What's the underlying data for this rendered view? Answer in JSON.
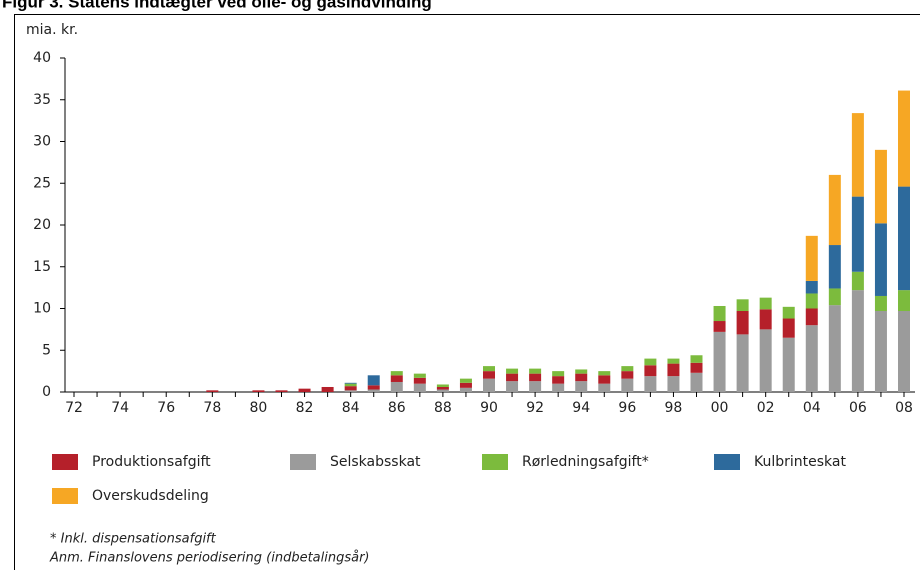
{
  "chart_data": {
    "type": "stacked_bar",
    "title": "Figur 3. Statens indtægter ved olie- og gasindvinding",
    "y_label": "mia. kr.",
    "categories": [
      "72",
      null,
      "74",
      null,
      "76",
      null,
      "78",
      null,
      "80",
      null,
      "82",
      null,
      "84",
      null,
      "86",
      null,
      "88",
      null,
      "90",
      null,
      "92",
      null,
      "94",
      null,
      "96",
      null,
      "98",
      null,
      "00",
      null,
      "02",
      null,
      "04",
      null,
      "06",
      null,
      "08"
    ],
    "series": [
      {
        "name": "Produktionsafgift",
        "color": "#b5202a",
        "values": [
          0,
          0,
          0,
          0,
          0,
          0,
          0.2,
          0,
          0.2,
          0.2,
          0.4,
          0.6,
          0.5,
          0.5,
          0.8,
          0.7,
          0.3,
          0.6,
          0.9,
          0.9,
          0.9,
          0.9,
          0.9,
          1.0,
          0.9,
          1.3,
          1.5,
          1.2,
          1.3,
          2.8,
          2.4,
          2.3,
          2.0,
          0,
          0,
          0,
          0
        ]
      },
      {
        "name": "Selskabsskat",
        "color": "#9b9b9b",
        "values": [
          0,
          0,
          0,
          0,
          0,
          0,
          0,
          0,
          0,
          0,
          0,
          0,
          0.2,
          0.3,
          1.2,
          1.0,
          0.3,
          0.5,
          1.6,
          1.3,
          1.3,
          1.0,
          1.3,
          1.0,
          1.6,
          1.9,
          1.9,
          2.3,
          7.2,
          6.9,
          7.5,
          6.5,
          8.0,
          10.4,
          12.2,
          9.7,
          9.7
        ]
      },
      {
        "name": "Rørledningsafgift*",
        "color": "#7cbb3d",
        "values": [
          0,
          0,
          0,
          0,
          0,
          0,
          0,
          0,
          0,
          0,
          0,
          0,
          0.3,
          0,
          0.5,
          0.5,
          0.3,
          0.5,
          0.6,
          0.6,
          0.6,
          0.6,
          0.5,
          0.5,
          0.6,
          0.8,
          0.6,
          0.9,
          1.8,
          1.4,
          1.4,
          1.4,
          1.8,
          2.0,
          2.2,
          1.8,
          2.5
        ]
      },
      {
        "name": "Kulbrinteskat",
        "color": "#2d6a9c",
        "values": [
          0,
          0,
          0,
          0,
          0,
          0,
          0,
          0,
          0,
          0,
          0,
          0,
          0.1,
          1.2,
          0,
          0,
          0,
          0,
          0,
          0,
          0,
          0,
          0,
          0,
          0,
          0,
          0,
          0,
          0,
          0,
          0,
          0,
          1.5,
          5.2,
          9.0,
          8.7,
          12.4
        ]
      },
      {
        "name": "Overskudsdeling",
        "color": "#f6a724",
        "values": [
          0,
          0,
          0,
          0,
          0,
          0,
          0,
          0,
          0,
          0,
          0,
          0,
          0,
          0,
          0,
          0,
          0,
          0,
          0,
          0,
          0,
          0,
          0,
          0,
          0,
          0,
          0,
          0,
          0,
          0,
          0,
          0,
          5.4,
          8.4,
          10.0,
          8.8,
          11.5
        ]
      }
    ],
    "ylim": [
      0,
      40
    ],
    "yticks": [
      0,
      5,
      10,
      15,
      20,
      25,
      30,
      35,
      40
    ],
    "notes": [
      "* Inkl. dispensationsafgift",
      "Anm. Finanslovens periodisering (indbetalingsår)"
    ]
  }
}
